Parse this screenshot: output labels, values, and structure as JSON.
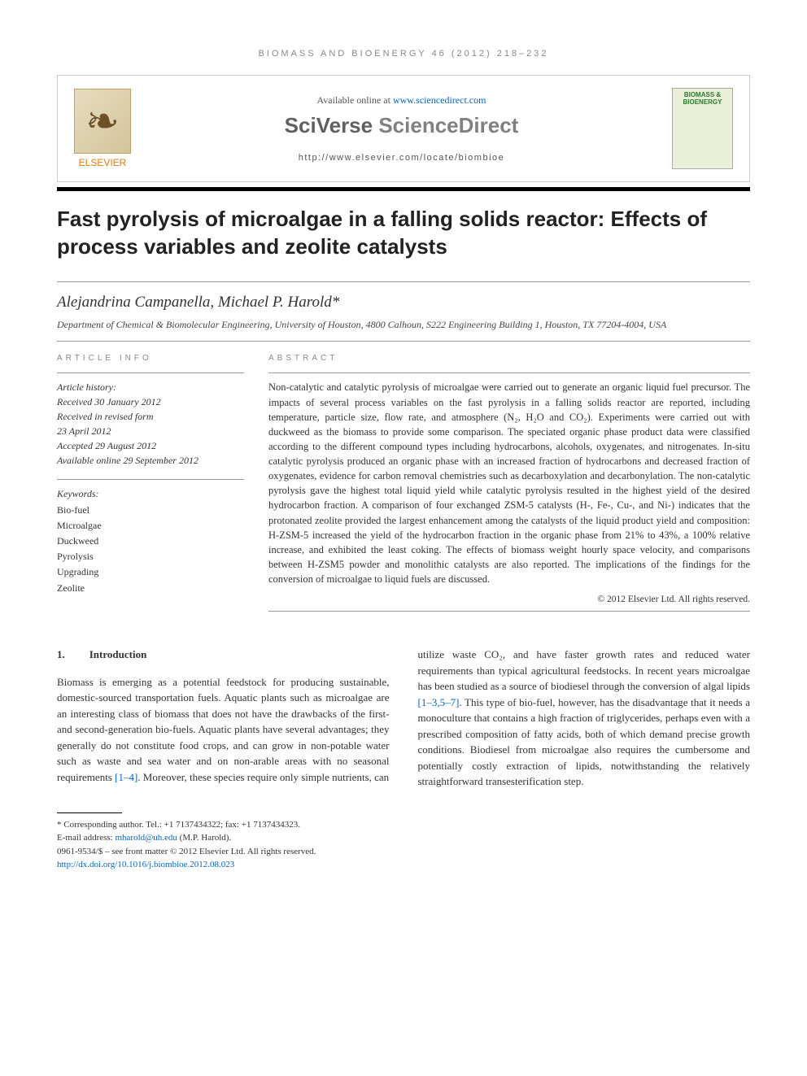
{
  "header": {
    "journal_ref": "BIOMASS AND BIOENERGY 46 (2012) 218–232"
  },
  "topbox": {
    "available_prefix": "Available online at ",
    "available_url": "www.sciencedirect.com",
    "brand_a": "SciVerse ",
    "brand_b": "ScienceDirect",
    "locate": "http://www.elsevier.com/locate/biombioe",
    "elsevier_label": "ELSEVIER",
    "journal_name": "BIOMASS & BIOENERGY"
  },
  "title": "Fast pyrolysis of microalgae in a falling solids reactor: Effects of process variables and zeolite catalysts",
  "authors": "Alejandrina Campanella, Michael P. Harold*",
  "affiliation": "Department of Chemical & Biomolecular Engineering, University of Houston, 4800 Calhoun, S222 Engineering Building 1, Houston, TX 77204-4004, USA",
  "info": {
    "label": "ARTICLE INFO",
    "history_head": "Article history:",
    "received": "Received 30 January 2012",
    "revised1": "Received in revised form",
    "revised2": "23 April 2012",
    "accepted": "Accepted 29 August 2012",
    "online": "Available online 29 September 2012",
    "keywords_head": "Keywords:",
    "kw": [
      "Bio-fuel",
      "Microalgae",
      "Duckweed",
      "Pyrolysis",
      "Upgrading",
      "Zeolite"
    ]
  },
  "abstract": {
    "label": "ABSTRACT",
    "text": "Non-catalytic and catalytic pyrolysis of microalgae were carried out to generate an organic liquid fuel precursor. The impacts of several process variables on the fast pyrolysis in a falling solids reactor are reported, including temperature, particle size, flow rate, and atmosphere (N₂, H₂O and CO₂). Experiments were carried out with duckweed as the biomass to provide some comparison. The speciated organic phase product data were classified according to the different compound types including hydrocarbons, alcohols, oxygenates, and nitrogenates. In-situ catalytic pyrolysis produced an organic phase with an increased fraction of hydrocarbons and decreased fraction of oxygenates, evidence for carbon removal chemistries such as decarboxylation and decarbonylation. The non-catalytic pyrolysis gave the highest total liquid yield while catalytic pyrolysis resulted in the highest yield of the desired hydrocarbon fraction. A comparison of four exchanged ZSM-5 catalysts (H-, Fe-, Cu-, and Ni-) indicates that the protonated zeolite provided the largest enhancement among the catalysts of the liquid product yield and composition: H-ZSM-5 increased the yield of the hydrocarbon fraction in the organic phase from 21% to 43%, a 100% relative increase, and exhibited the least coking. The effects of biomass weight hourly space velocity, and comparisons between H-ZSM5 powder and monolithic catalysts are also reported. The implications of the findings for the conversion of microalgae to liquid fuels are discussed.",
    "copyright": "© 2012 Elsevier Ltd. All rights reserved."
  },
  "body": {
    "section_num": "1.",
    "section_title": "Introduction",
    "col1": "Biomass is emerging as a potential feedstock for producing sustainable, domestic-sourced transportation fuels. Aquatic plants such as microalgae are an interesting class of biomass that does not have the drawbacks of the first- and second-generation bio-fuels. Aquatic plants have several advantages; they generally do not constitute food crops, and can grow in non-potable water such as waste and sea water and on non-arable areas with no seasonal requirements ",
    "col1_cite": "[1–4]",
    "col1b": ". Moreover, these species require only simple nutrients, can",
    "col2a": "utilize waste CO₂, and have faster growth rates and reduced water requirements than typical agricultural feedstocks. In recent years microalgae has been studied as a source of biodiesel through the conversion of algal lipids ",
    "col2_cite": "[1–3,5–7]",
    "col2b": ". This type of bio-fuel, however, has the disadvantage that it needs a monoculture that contains a high fraction of triglycerides, perhaps even with a prescribed composition of fatty acids, both of which demand precise growth conditions. Biodiesel from microalgae also requires the cumbersome and potentially costly extraction of lipids, notwithstanding the relatively straightforward transesterification step."
  },
  "footer": {
    "corresponding": "* Corresponding author. Tel.: +1 7137434322; fax: +1 7137434323.",
    "email_label": "E-mail address: ",
    "email": "mharold@uh.edu",
    "email_suffix": " (M.P. Harold).",
    "issn": "0961-9534/$ – see front matter © 2012 Elsevier Ltd. All rights reserved.",
    "doi": "http://dx.doi.org/10.1016/j.biombioe.2012.08.023"
  },
  "colors": {
    "link": "#0066cc",
    "elsevier_orange": "#e67817",
    "rule": "#999999",
    "black": "#000000"
  }
}
